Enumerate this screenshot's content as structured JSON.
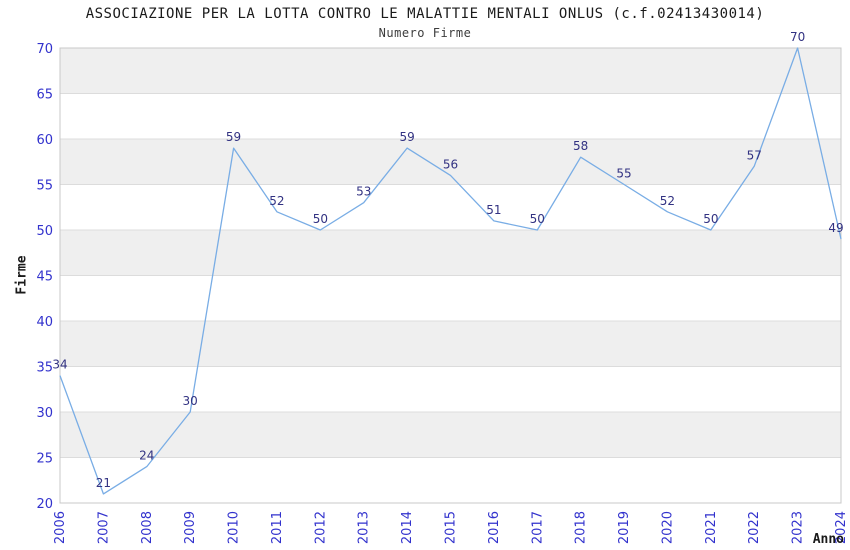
{
  "chart": {
    "title": "ASSOCIAZIONE PER LA LOTTA CONTRO LE MALATTIE MENTALI ONLUS (c.f.02413430014)",
    "subtitle": "Numero Firme",
    "xlabel": "Anno",
    "ylabel": "Firme"
  },
  "chart_data": {
    "type": "line",
    "title": "ASSOCIAZIONE PER LA LOTTA CONTRO LE MALATTIE MENTALI ONLUS (c.f.02413430014)",
    "subtitle": "Numero Firme",
    "xlabel": "Anno",
    "ylabel": "Firme",
    "categories": [
      "2006",
      "2007",
      "2008",
      "2009",
      "2010",
      "2011",
      "2012",
      "2013",
      "2014",
      "2015",
      "2016",
      "2017",
      "2018",
      "2019",
      "2020",
      "2021",
      "2022",
      "2023",
      "2024"
    ],
    "values": [
      34,
      21,
      24,
      30,
      59,
      52,
      50,
      53,
      59,
      56,
      51,
      50,
      58,
      55,
      52,
      50,
      57,
      70,
      49
    ],
    "ylim": [
      20,
      70
    ],
    "ytick_step": 5,
    "grid": true,
    "legend_position": "none",
    "data_labels_visible": true,
    "colors": {
      "line": "#79ade5",
      "data_label": "#323282",
      "tick_label": "#3232cd",
      "band": "#efefef",
      "grid_line": "#dcdcdc",
      "plot_border": "#c8c8c8",
      "background": "#ffffff"
    }
  }
}
